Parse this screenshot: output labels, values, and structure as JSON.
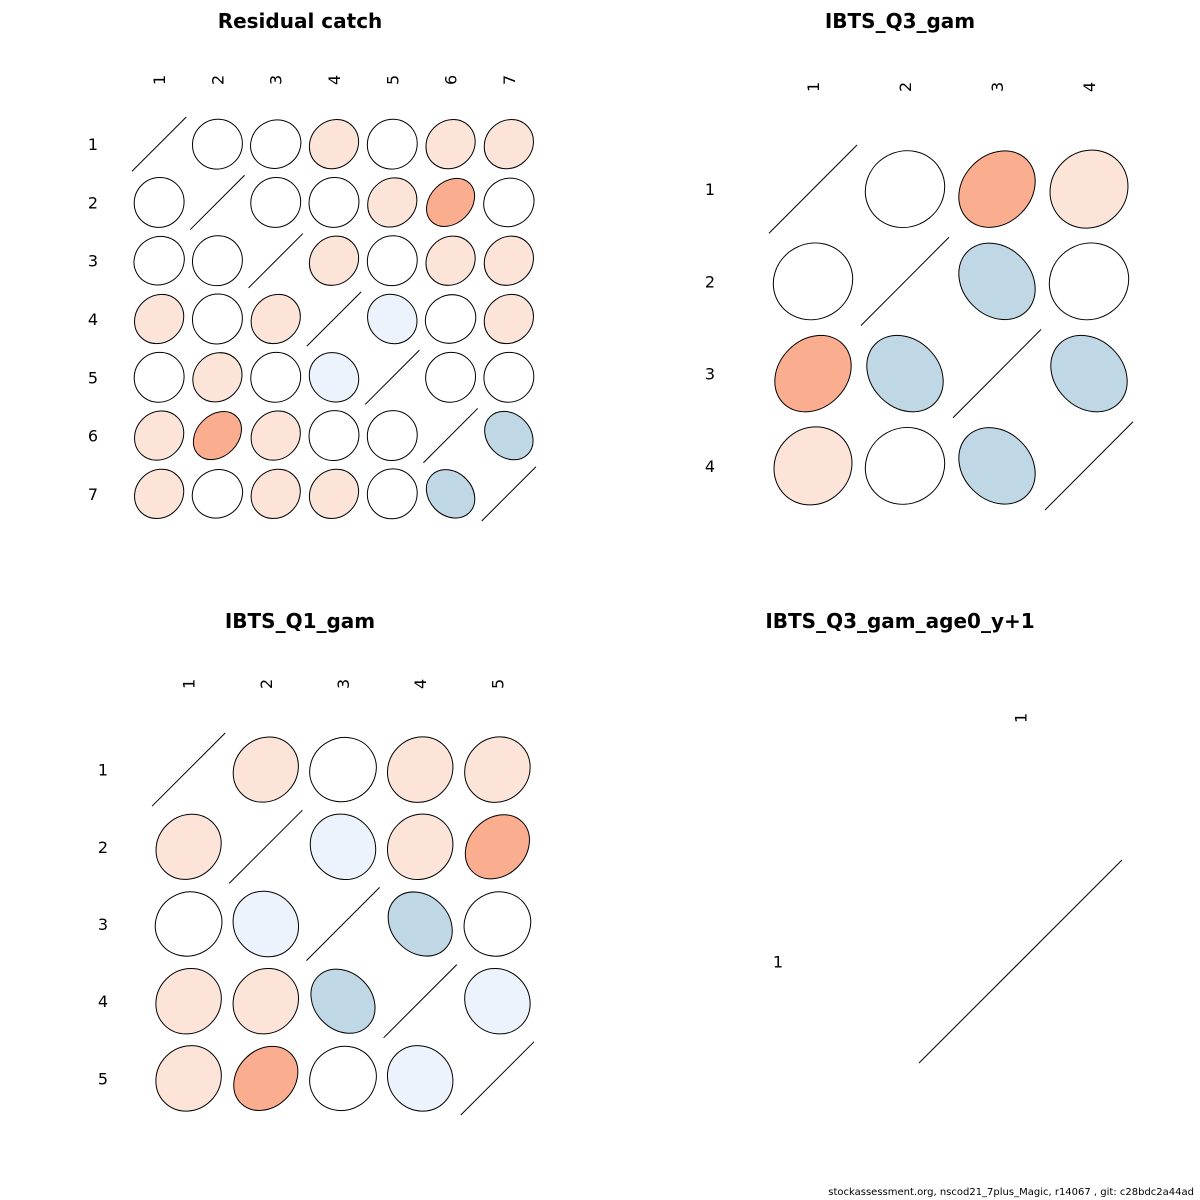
{
  "colors": {
    "strong_positive": "#fbad8f",
    "weak_positive": "#fde4d9",
    "neutral": "#ffffff",
    "weak_negative": "#edf3fd",
    "strong_negative": "#c0d7e5"
  },
  "footer": "stockassessment.org, nscod21_7plus_Magic, r14067 , git: c28bdc2a44ad",
  "chart_data": [
    {
      "type": "heatmap",
      "subtype": "correlation-ellipse-matrix",
      "title": "Residual catch",
      "labels": [
        "1",
        "2",
        "3",
        "4",
        "5",
        "6",
        "7"
      ],
      "matrix": [
        [
          1,
          0.05,
          0,
          0.2,
          0.05,
          0.2,
          0.2
        ],
        [
          0.05,
          1,
          0.05,
          0.05,
          0.2,
          0.5,
          0
        ],
        [
          0,
          0.05,
          1,
          0.2,
          0.05,
          0.2,
          0.2
        ],
        [
          0.2,
          0.05,
          0.2,
          1,
          -0.15,
          0,
          0.2
        ],
        [
          0.05,
          0.2,
          0.05,
          -0.15,
          1,
          0.05,
          0.05
        ],
        [
          0.2,
          0.5,
          0.2,
          0.05,
          0.05,
          1,
          -0.4
        ],
        [
          0.2,
          0,
          0.2,
          0.2,
          0.05,
          -0.4,
          1
        ]
      ]
    },
    {
      "type": "heatmap",
      "subtype": "correlation-ellipse-matrix",
      "title": "IBTS_Q3_gam",
      "labels": [
        "1",
        "2",
        "3",
        "4"
      ],
      "matrix": [
        [
          1,
          0,
          0.4,
          0.15
        ],
        [
          0,
          1,
          -0.4,
          0
        ],
        [
          0.4,
          -0.4,
          1,
          -0.4
        ],
        [
          0.15,
          0,
          -0.4,
          1
        ]
      ]
    },
    {
      "type": "heatmap",
      "subtype": "correlation-ellipse-matrix",
      "title": "IBTS_Q1_gam",
      "labels": [
        "1",
        "2",
        "3",
        "4",
        "5"
      ],
      "matrix": [
        [
          1,
          0.2,
          0,
          0.15,
          0.15
        ],
        [
          0.2,
          1,
          -0.15,
          0.15,
          0.4
        ],
        [
          0,
          -0.15,
          1,
          -0.4,
          0
        ],
        [
          0.15,
          0.15,
          -0.4,
          1,
          -0.15
        ],
        [
          0.15,
          0.4,
          0,
          -0.15,
          1
        ]
      ]
    },
    {
      "type": "heatmap",
      "subtype": "correlation-ellipse-matrix",
      "title": "IBTS_Q3_gam_age0_y+1",
      "labels": [
        "1"
      ],
      "matrix": [
        [
          1
        ]
      ]
    }
  ]
}
